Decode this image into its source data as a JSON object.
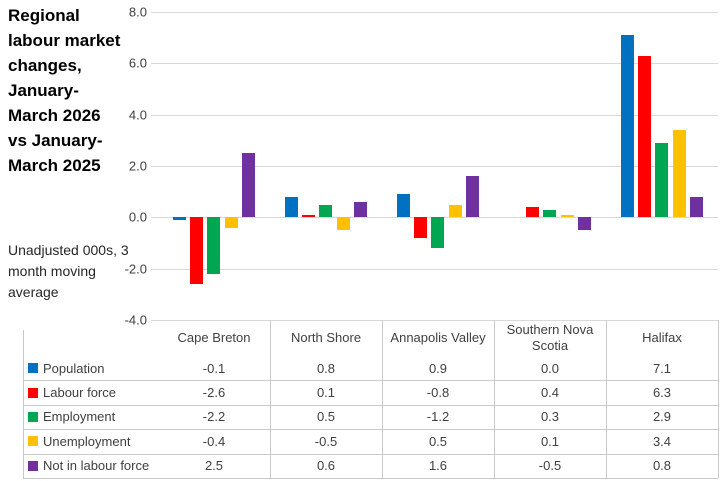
{
  "chart_data": {
    "type": "bar",
    "title": "Regional labour market changes, January-March 2026 vs January-March 2025",
    "subtitle": "Unadjusted 000s, 3 month moving average",
    "categories": [
      "Cape Breton",
      "North Shore",
      "Annapolis Valley",
      "Southern Nova Scotia",
      "Halifax"
    ],
    "series": [
      {
        "name": "Population",
        "color": "#0070C0",
        "values": [
          -0.1,
          0.8,
          0.9,
          0.0,
          7.1
        ]
      },
      {
        "name": "Labour force",
        "color": "#FF0000",
        "values": [
          -2.6,
          0.1,
          -0.8,
          0.4,
          6.3
        ]
      },
      {
        "name": "Employment",
        "color": "#00A651",
        "values": [
          -2.2,
          0.5,
          -1.2,
          0.3,
          2.9
        ]
      },
      {
        "name": "Unemployment",
        "color": "#FFC000",
        "values": [
          -0.4,
          -0.5,
          0.5,
          0.1,
          3.4
        ]
      },
      {
        "name": "Not in labour force",
        "color": "#7030A0",
        "values": [
          2.5,
          0.6,
          1.6,
          -0.5,
          0.8
        ]
      }
    ],
    "ylim": [
      -4.0,
      8.0
    ],
    "ytick_values": [
      8.0,
      6.0,
      4.0,
      2.0,
      0.0,
      -2.0,
      -4.0
    ],
    "ytick_labels": [
      "8.0",
      "6.0",
      "4.0",
      "2.0",
      "0.0",
      "-2.0",
      "-4.0"
    ],
    "grid": true,
    "value_decimals": 1,
    "legend_position": "data-table-left-column",
    "gridline_color": "#d9d9d9",
    "table_border_color": "#c9c9c9"
  }
}
